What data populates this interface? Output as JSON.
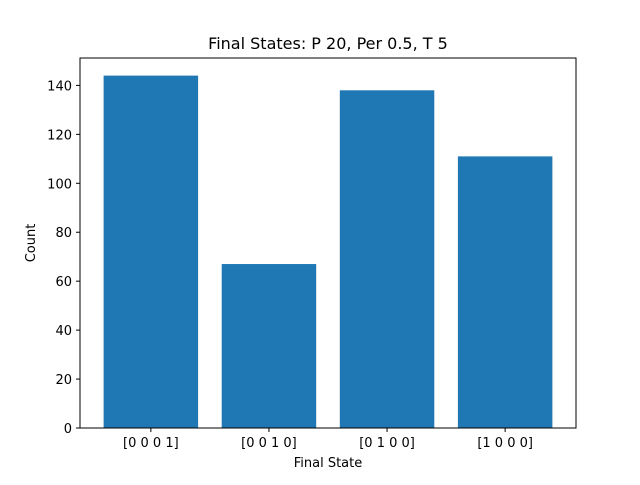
{
  "chart_data": {
    "type": "bar",
    "title": "Final States: P 20, Per 0.5, T 5",
    "xlabel": "Final State",
    "ylabel": "Count",
    "categories": [
      "[0 0 0 1]",
      "[0 0 1 0]",
      "[0 1 0 0]",
      "[1 0 0 0]"
    ],
    "values": [
      144,
      67,
      138,
      111
    ],
    "ylim": [
      0,
      151.2
    ],
    "yticks": [
      0,
      20,
      40,
      60,
      80,
      100,
      120,
      140
    ],
    "grid": false,
    "bar_color": "#1f77b4"
  }
}
